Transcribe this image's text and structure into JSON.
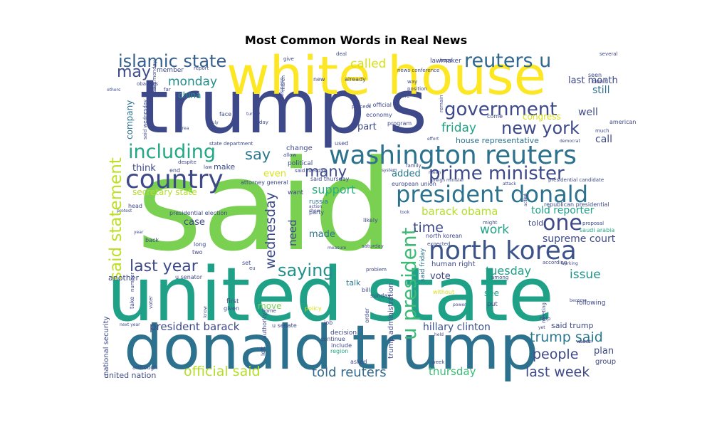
{
  "title": "Most Common Words in Real News",
  "words": [
    {
      "text": "said",
      "color": "#7ad151"
    },
    {
      "text": "trump s",
      "color": "#3e4989"
    },
    {
      "text": "united state",
      "color": "#1fa187"
    },
    {
      "text": "donald trump",
      "color": "#2c728e"
    },
    {
      "text": "white house",
      "color": "#fde725"
    },
    {
      "text": "washington reuters",
      "color": "#2c728e"
    },
    {
      "text": "north korea",
      "color": "#3b528b"
    },
    {
      "text": "president donald",
      "color": "#2c728e"
    },
    {
      "text": "country",
      "color": "#3e4989"
    },
    {
      "text": "including",
      "color": "#22a884"
    },
    {
      "text": "government",
      "color": "#3e4989"
    },
    {
      "text": "prime minister",
      "color": "#3e4989"
    },
    {
      "text": "reuters u",
      "color": "#31688e"
    },
    {
      "text": "islamic state",
      "color": "#355f8d"
    },
    {
      "text": "new york",
      "color": "#3e4989"
    },
    {
      "text": "u president",
      "color": "#3bbb75"
    },
    {
      "text": "said statement",
      "color": "#bddf26"
    },
    {
      "text": "one",
      "color": "#3e4989"
    },
    {
      "text": "last year",
      "color": "#3e4989"
    },
    {
      "text": "saying",
      "color": "#21918c"
    },
    {
      "text": "official said",
      "color": "#b5de2b"
    },
    {
      "text": "told reuters",
      "color": "#31688e"
    },
    {
      "text": "last week",
      "color": "#3e4989"
    },
    {
      "text": "people",
      "color": "#3e4989"
    },
    {
      "text": "trump said",
      "color": "#2a788e"
    },
    {
      "text": "president barack",
      "color": "#3e4989"
    },
    {
      "text": "barack obama",
      "color": "#b5de2b"
    },
    {
      "text": "may",
      "color": "#3e4989"
    },
    {
      "text": "say",
      "color": "#2a788e"
    },
    {
      "text": "many",
      "color": "#3e4989"
    },
    {
      "text": "time",
      "color": "#3e4989"
    },
    {
      "text": "work",
      "color": "#1fa187"
    },
    {
      "text": "called",
      "color": "#d8e219"
    },
    {
      "text": "monday",
      "color": "#228c8d"
    },
    {
      "text": "friday",
      "color": "#1fa187"
    },
    {
      "text": "support",
      "color": "#2ab07f"
    },
    {
      "text": "wednesday",
      "color": "#3e4989"
    },
    {
      "text": "tuesday",
      "color": "#1f9e89"
    },
    {
      "text": "issue",
      "color": "#21918c"
    },
    {
      "text": "thursday",
      "color": "#3bbb75"
    },
    {
      "text": "hillary clinton",
      "color": "#3b528b"
    },
    {
      "text": "told reporter",
      "color": "#1fa187"
    },
    {
      "text": "house representative",
      "color": "#2c728e"
    },
    {
      "text": "supreme court",
      "color": "#3e4989"
    },
    {
      "text": "last month",
      "color": "#3e4989"
    },
    {
      "text": "still",
      "color": "#2c728e"
    },
    {
      "text": "well",
      "color": "#3e4989"
    },
    {
      "text": "call",
      "color": "#3e4989"
    },
    {
      "text": "plan",
      "color": "#3e4989"
    },
    {
      "text": "secretary state",
      "color": "#b5de2b"
    },
    {
      "text": "think",
      "color": "#3e4989"
    },
    {
      "text": "even",
      "color": "#d8e219"
    },
    {
      "text": "added",
      "color": "#2a788e"
    },
    {
      "text": "part",
      "color": "#3e4989"
    },
    {
      "text": "need",
      "color": "#3e4989"
    },
    {
      "text": "made",
      "color": "#2c728e"
    },
    {
      "text": "case",
      "color": "#3e4989"
    },
    {
      "text": "vote",
      "color": "#3e4989"
    },
    {
      "text": "see",
      "color": "#1fa187"
    },
    {
      "text": "move",
      "color": "#7ad151"
    },
    {
      "text": "talk",
      "color": "#2a788e"
    },
    {
      "text": "china",
      "color": "#21918c"
    },
    {
      "text": "another",
      "color": "#3e4989"
    },
    {
      "text": "company",
      "color": "#2c728e"
    },
    {
      "text": "united nation",
      "color": "#3e4989"
    },
    {
      "text": "national security",
      "color": "#3e4989"
    },
    {
      "text": "group",
      "color": "#3e4989"
    },
    {
      "text": "congress",
      "color": "#d8e219"
    },
    {
      "text": "trump administration",
      "color": "#3e4989"
    },
    {
      "text": "said trump",
      "color": "#3e4989"
    },
    {
      "text": "human right",
      "color": "#3e4989"
    },
    {
      "text": "said friday",
      "color": "#2c728e"
    },
    {
      "text": "told",
      "color": "#3e4989"
    },
    {
      "text": "make",
      "color": "#3e4989"
    },
    {
      "text": "end",
      "color": "#3e4989"
    },
    {
      "text": "russia",
      "color": "#2c728e"
    },
    {
      "text": "party",
      "color": "#3e4989"
    },
    {
      "text": "want",
      "color": "#3e4989"
    },
    {
      "text": "political",
      "color": "#3e4989"
    },
    {
      "text": "change",
      "color": "#3e4989"
    },
    {
      "text": "day",
      "color": "#3e4989"
    },
    {
      "text": "face",
      "color": "#3e4989"
    },
    {
      "text": "law",
      "color": "#3e4989"
    },
    {
      "text": "head",
      "color": "#3e4989"
    },
    {
      "text": "back",
      "color": "#3e4989"
    },
    {
      "text": "long",
      "color": "#3e4989"
    },
    {
      "text": "first",
      "color": "#3e4989"
    },
    {
      "text": "given",
      "color": "#3e4989"
    },
    {
      "text": "home",
      "color": "#3e4989"
    },
    {
      "text": "set",
      "color": "#3e4989"
    },
    {
      "text": "eu",
      "color": "#3e4989"
    },
    {
      "text": "policy",
      "color": "#d8e219"
    },
    {
      "text": "job",
      "color": "#3e4989"
    },
    {
      "text": "decision",
      "color": "#3e4989"
    },
    {
      "text": "continue",
      "color": "#3e4989"
    },
    {
      "text": "include",
      "color": "#3e4989"
    },
    {
      "text": "region",
      "color": "#22a884"
    },
    {
      "text": "asked",
      "color": "#3e4989"
    },
    {
      "text": "week",
      "color": "#3e4989"
    },
    {
      "text": "among",
      "color": "#3e4989"
    },
    {
      "text": "put",
      "color": "#3e4989"
    },
    {
      "text": "power",
      "color": "#3e4989"
    },
    {
      "text": "without",
      "color": "#d8e219"
    },
    {
      "text": "help",
      "color": "#3e4989"
    },
    {
      "text": "meeting",
      "color": "#3e4989"
    },
    {
      "text": "following",
      "color": "#3e4989"
    },
    {
      "text": "according",
      "color": "#3e4989"
    },
    {
      "text": "saudi arabia",
      "color": "#22a884"
    },
    {
      "text": "proposal",
      "color": "#3e4989"
    },
    {
      "text": "much",
      "color": "#3e4989"
    },
    {
      "text": "american",
      "color": "#3e4989"
    },
    {
      "text": "don t",
      "color": "#3e4989"
    },
    {
      "text": "seen",
      "color": "#3e4989"
    },
    {
      "text": "several",
      "color": "#3e4989"
    },
    {
      "text": "come",
      "color": "#3e4989"
    },
    {
      "text": "republican presidential",
      "color": "#3e4989"
    },
    {
      "text": "presidential candidate",
      "color": "#3e4989"
    },
    {
      "text": "foreign minister",
      "color": "#3e4989"
    },
    {
      "text": "european union",
      "color": "#3e4989"
    },
    {
      "text": "north korean",
      "color": "#3e4989"
    },
    {
      "text": "might",
      "color": "#3e4989"
    },
    {
      "text": "expected",
      "color": "#3e4989"
    },
    {
      "text": "attack",
      "color": "#3e4989"
    },
    {
      "text": "family",
      "color": "#3e4989"
    },
    {
      "text": "said tuesday",
      "color": "#3e4989"
    },
    {
      "text": "said thursday",
      "color": "#3e4989"
    },
    {
      "text": "state department",
      "color": "#3e4989"
    },
    {
      "text": "attorney general",
      "color": "#3e4989"
    },
    {
      "text": "presidential election",
      "color": "#3e4989"
    },
    {
      "text": "u senator",
      "color": "#3e4989"
    },
    {
      "text": "u senate",
      "color": "#3e4989"
    },
    {
      "text": "protest",
      "color": "#3e4989"
    },
    {
      "text": "year",
      "color": "#3e4989"
    },
    {
      "text": "two",
      "color": "#3e4989"
    },
    {
      "text": "sunday",
      "color": "#3e4989"
    },
    {
      "text": "bill",
      "color": "#3e4989"
    },
    {
      "text": "left",
      "color": "#3e4989"
    },
    {
      "text": "although",
      "color": "#3e4989"
    },
    {
      "text": "number",
      "color": "#3e4989"
    },
    {
      "text": "authority",
      "color": "#3e4989"
    },
    {
      "text": "problem",
      "color": "#3e4989"
    },
    {
      "text": "take",
      "color": "#3e4989"
    },
    {
      "text": "voter",
      "color": "#3e4989"
    },
    {
      "text": "order",
      "color": "#3e4989"
    },
    {
      "text": "saturday",
      "color": "#3e4989"
    },
    {
      "text": "measure",
      "color": "#3e4989"
    },
    {
      "text": "likely",
      "color": "#3e4989"
    },
    {
      "text": "used",
      "color": "#3e4989"
    },
    {
      "text": "allow",
      "color": "#3e4989"
    },
    {
      "text": "despite",
      "color": "#3e4989"
    },
    {
      "text": "result",
      "color": "#3e4989"
    },
    {
      "text": "far",
      "color": "#3e4989"
    },
    {
      "text": "obama s",
      "color": "#3e4989"
    },
    {
      "text": "others",
      "color": "#3e4989"
    },
    {
      "text": "said monday",
      "color": "#3e4989"
    },
    {
      "text": "member",
      "color": "#3e4989"
    },
    {
      "text": "report",
      "color": "#3e4989"
    },
    {
      "text": "give",
      "color": "#3e4989"
    },
    {
      "text": "march",
      "color": "#3e4989"
    },
    {
      "text": "deal",
      "color": "#3e4989"
    },
    {
      "text": "new",
      "color": "#3e4989"
    },
    {
      "text": "already",
      "color": "#3e4989"
    },
    {
      "text": "business",
      "color": "#3e4989"
    },
    {
      "text": "lawmaker",
      "color": "#3e4989"
    },
    {
      "text": "hope",
      "color": "#3e4989"
    },
    {
      "text": "news conference",
      "color": "#3e4989"
    },
    {
      "text": "remain",
      "color": "#3e4989"
    },
    {
      "text": "way",
      "color": "#3e4989"
    },
    {
      "text": "position",
      "color": "#3e4989"
    },
    {
      "text": "rule",
      "color": "#3e4989"
    },
    {
      "text": "said wednesday",
      "color": "#3e4989"
    },
    {
      "text": "process",
      "color": "#3e4989"
    },
    {
      "text": "u official",
      "color": "#3e4989"
    },
    {
      "text": "economy",
      "color": "#3e4989"
    },
    {
      "text": "know",
      "color": "#3e4989"
    },
    {
      "text": "program",
      "color": "#3e4989"
    },
    {
      "text": "effort",
      "color": "#3e4989"
    },
    {
      "text": "democrat",
      "color": "#3e4989"
    },
    {
      "text": "event",
      "color": "#3e4989"
    },
    {
      "text": "woman",
      "color": "#3e4989"
    },
    {
      "text": "working",
      "color": "#3e4989"
    },
    {
      "text": "yet",
      "color": "#3e4989"
    },
    {
      "text": "held",
      "color": "#3e4989"
    },
    {
      "text": "become",
      "color": "#3e4989"
    },
    {
      "text": "next year",
      "color": "#3e4989"
    },
    {
      "text": "system",
      "color": "#3e4989"
    },
    {
      "text": "turkey",
      "color": "#3e4989"
    },
    {
      "text": "area",
      "color": "#3e4989"
    },
    {
      "text": "july",
      "color": "#3e4989"
    },
    {
      "text": "action",
      "color": "#3e4989"
    },
    {
      "text": "show",
      "color": "#3e4989"
    },
    {
      "text": "took",
      "color": "#3e4989"
    },
    {
      "text": "led",
      "color": "#3e4989"
    },
    {
      "text": "mean",
      "color": "#3e4989"
    }
  ]
}
